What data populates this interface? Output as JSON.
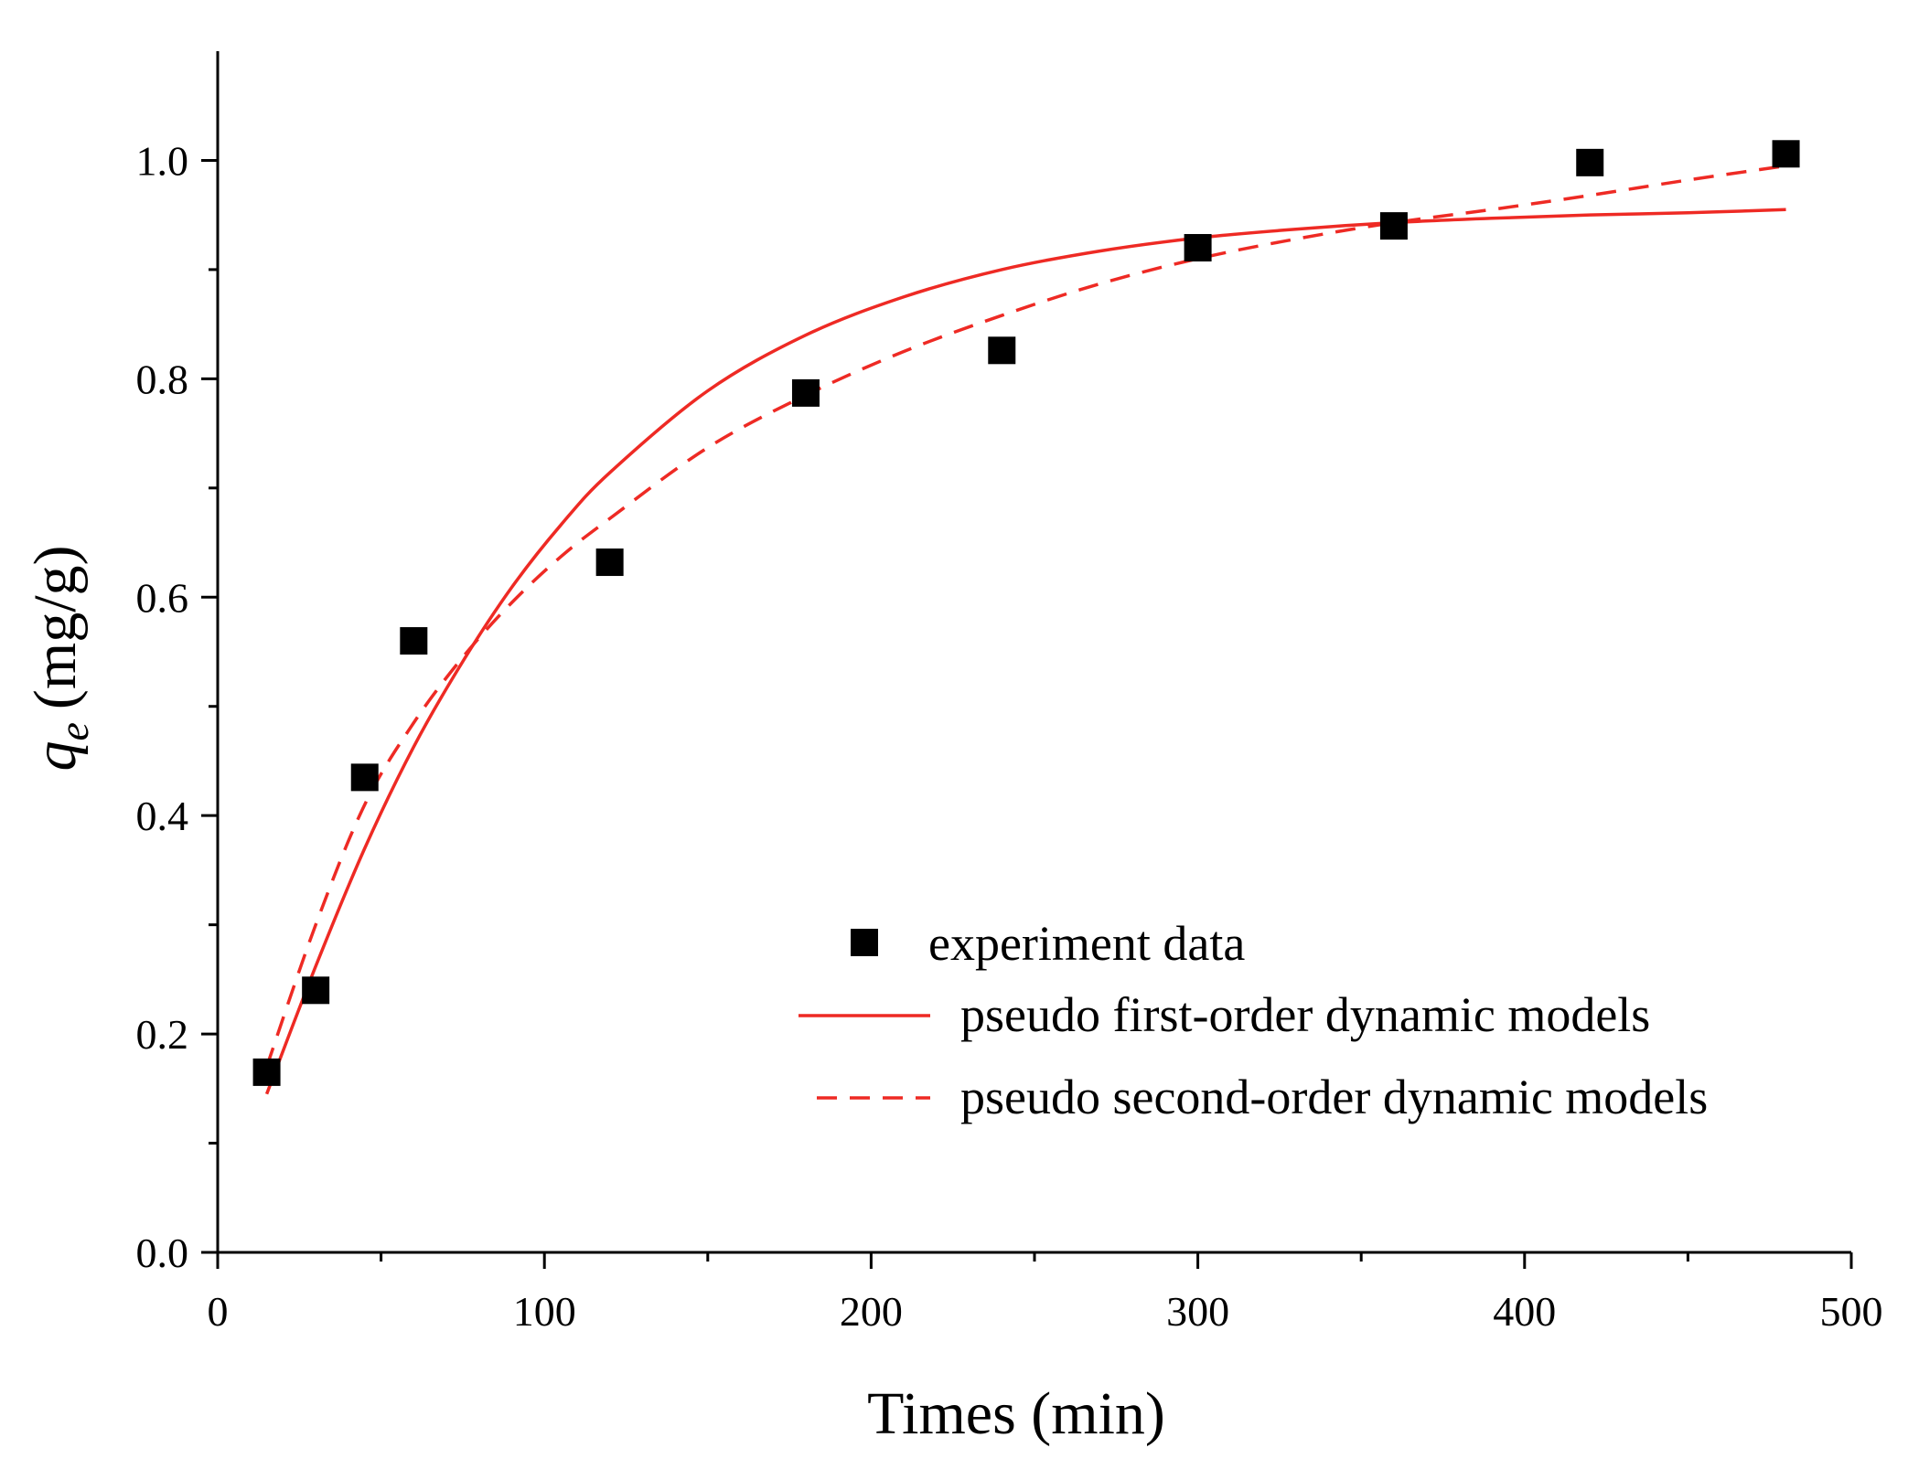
{
  "chart_data": {
    "type": "scatter",
    "title": "",
    "xlabel": "Times (min)",
    "ylabel_symbol": "q",
    "ylabel_subscript": "e",
    "ylabel_units": "(mg/g)",
    "xlim": [
      0,
      500
    ],
    "ylim": [
      0,
      1.1
    ],
    "xticks": [
      0,
      100,
      200,
      300,
      400,
      500
    ],
    "xtick_labels": [
      "0",
      "100",
      "200",
      "300",
      "400",
      "500"
    ],
    "yticks": [
      0.0,
      0.2,
      0.4,
      0.6,
      0.8,
      1.0
    ],
    "ytick_labels": [
      "0.0",
      "0.2",
      "0.4",
      "0.6",
      "0.8",
      "1.0"
    ],
    "grid": false,
    "legend_position": "bottom-right",
    "series": [
      {
        "name": "experiment data",
        "kind": "markers",
        "marker": "square",
        "color": "#000000",
        "x": [
          15,
          30,
          45,
          60,
          120,
          180,
          240,
          300,
          360,
          420,
          480
        ],
        "y": [
          0.165,
          0.24,
          0.435,
          0.56,
          0.632,
          0.787,
          0.826,
          0.92,
          0.94,
          0.998,
          1.006
        ]
      },
      {
        "name": "pseudo first-order dynamic models",
        "kind": "line",
        "style": "solid",
        "color": "#ee2a24",
        "x": [
          15,
          30,
          45,
          60,
          75,
          90,
          105,
          120,
          150,
          180,
          210,
          240,
          270,
          300,
          330,
          360,
          390,
          420,
          450,
          480
        ],
        "y": [
          0.145,
          0.262,
          0.37,
          0.463,
          0.541,
          0.609,
          0.666,
          0.714,
          0.789,
          0.84,
          0.875,
          0.9,
          0.917,
          0.929,
          0.937,
          0.943,
          0.947,
          0.95,
          0.952,
          0.955
        ]
      },
      {
        "name": "pseudo second-order dynamic models",
        "kind": "line",
        "style": "dashed",
        "color": "#ee2a24",
        "x": [
          15,
          30,
          45,
          60,
          75,
          90,
          105,
          120,
          150,
          180,
          210,
          240,
          270,
          300,
          330,
          360,
          390,
          420,
          450,
          480
        ],
        "y": [
          0.17,
          0.3,
          0.41,
          0.485,
          0.545,
          0.595,
          0.637,
          0.672,
          0.737,
          0.785,
          0.825,
          0.858,
          0.887,
          0.91,
          0.928,
          0.943,
          0.955,
          0.968,
          0.982,
          0.995
        ]
      }
    ]
  }
}
